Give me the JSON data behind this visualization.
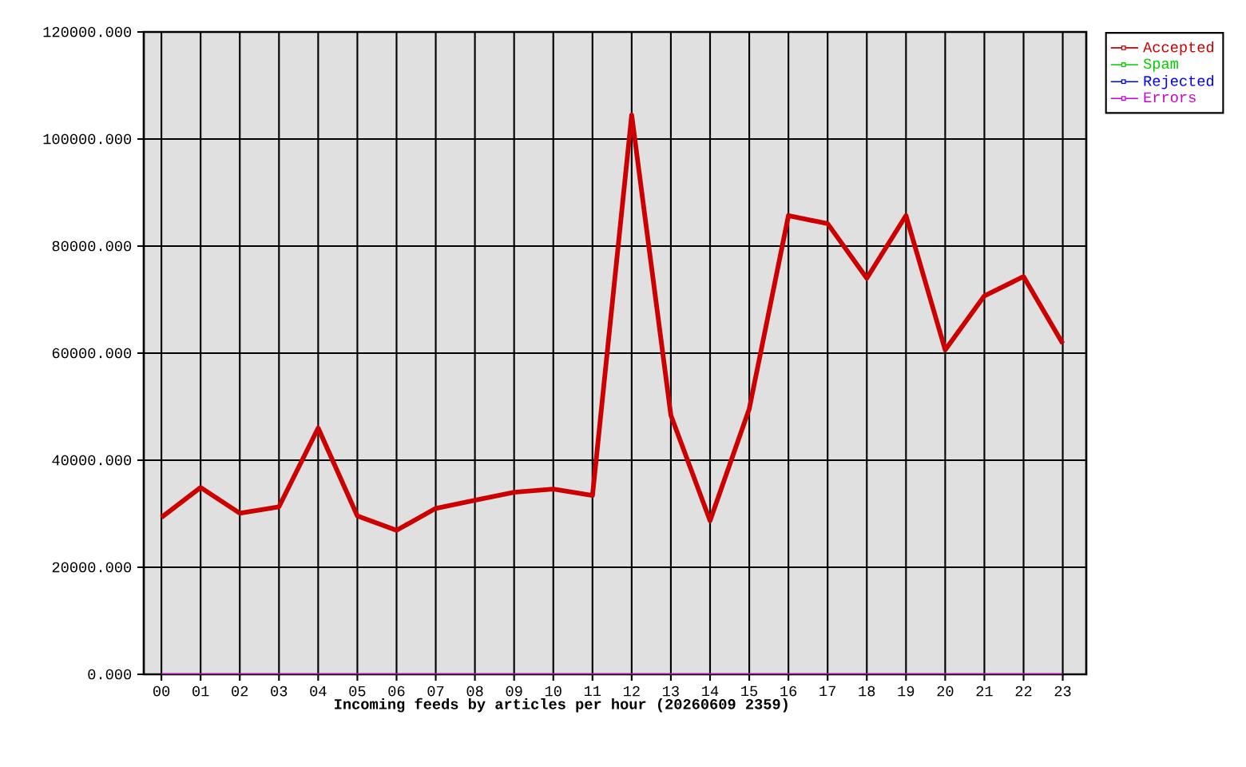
{
  "chart_data": {
    "type": "line",
    "xlabel": "Incoming feeds by articles per hour (20260609 2359)",
    "categories": [
      "00",
      "01",
      "02",
      "03",
      "04",
      "05",
      "06",
      "07",
      "08",
      "09",
      "10",
      "11",
      "12",
      "13",
      "14",
      "15",
      "16",
      "17",
      "18",
      "19",
      "20",
      "21",
      "22",
      "23"
    ],
    "series": [
      {
        "name": "Accepted",
        "color": "#cc0000",
        "values": [
          29300,
          34900,
          30100,
          31300,
          46000,
          29600,
          26900,
          31000,
          32500,
          34000,
          34600,
          33400,
          104500,
          48400,
          28700,
          49600,
          85700,
          84200,
          74000,
          85700,
          60600,
          70700,
          74300,
          61800
        ]
      },
      {
        "name": "Spam",
        "color": "#00cc00",
        "values": [
          null,
          null,
          null,
          null,
          null,
          null,
          null,
          null,
          null,
          null,
          null,
          null,
          null,
          null,
          null,
          null,
          null,
          null,
          null,
          null,
          null,
          null,
          null,
          null
        ]
      },
      {
        "name": "Rejected",
        "color": "#0000ff",
        "values": [
          null,
          null,
          null,
          null,
          null,
          null,
          null,
          null,
          null,
          null,
          null,
          null,
          null,
          null,
          null,
          null,
          null,
          null,
          null,
          null,
          null,
          null,
          null,
          null
        ]
      },
      {
        "name": "Errors",
        "color": "#cc00cc",
        "values": [
          0,
          0,
          0,
          0,
          0,
          0,
          0,
          0,
          0,
          0,
          0,
          0,
          0,
          0,
          0,
          0,
          0,
          0,
          0,
          0,
          0,
          0,
          0,
          0
        ]
      }
    ],
    "ylim": [
      0,
      120000
    ],
    "yticks": [
      {
        "value": 0,
        "label": "0.000"
      },
      {
        "value": 20000,
        "label": "20000.000"
      },
      {
        "value": 40000,
        "label": "40000.000"
      },
      {
        "value": 60000,
        "label": "60000.000"
      },
      {
        "value": 80000,
        "label": "80000.000"
      },
      {
        "value": 100000,
        "label": "100000.000"
      },
      {
        "value": 120000,
        "label": "120000.000"
      }
    ],
    "grid": true,
    "legend": "top right"
  }
}
